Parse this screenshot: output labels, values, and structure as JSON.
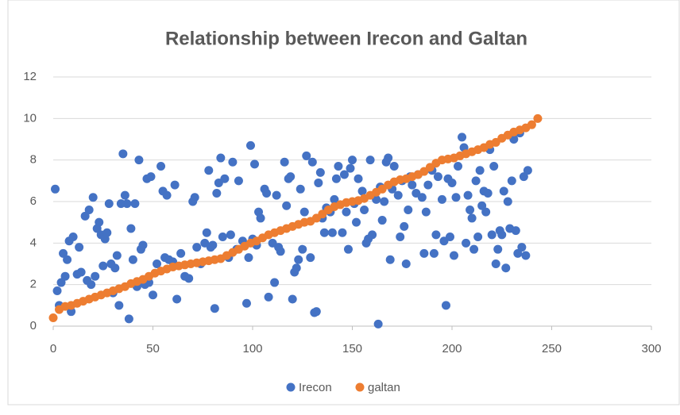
{
  "chart_data": {
    "type": "scatter",
    "title": "Relationship between Irecon and Galtan",
    "xlim": [
      0,
      300
    ],
    "xticks": [
      0,
      50,
      100,
      150,
      200,
      250,
      300
    ],
    "ylim": [
      0,
      12
    ],
    "yticks": [
      0,
      2,
      4,
      6,
      8,
      10,
      12
    ],
    "grid": true,
    "legend": "bottom",
    "series": [
      {
        "name": "Irecon",
        "color": "#4472c4",
        "x": [
          1,
          2,
          3,
          4,
          5,
          6,
          7,
          8,
          9,
          10,
          12,
          13,
          14,
          16,
          17,
          18,
          19,
          20,
          21,
          22,
          23,
          24,
          25,
          26,
          27,
          28,
          29,
          30,
          31,
          32,
          33,
          34,
          35,
          36,
          37,
          38,
          39,
          40,
          41,
          42,
          43,
          44,
          45,
          46,
          47,
          48,
          49,
          50,
          52,
          54,
          55,
          56,
          57,
          58,
          60,
          61,
          62,
          64,
          66,
          68,
          70,
          71,
          72,
          74,
          76,
          77,
          78,
          79,
          80,
          81,
          82,
          83,
          84,
          85,
          86,
          88,
          89,
          90,
          92,
          93,
          95,
          97,
          98,
          99,
          100,
          101,
          102,
          103,
          104,
          106,
          107,
          108,
          110,
          111,
          112,
          113,
          114,
          116,
          117,
          118,
          119,
          120,
          121,
          122,
          123,
          124,
          125,
          126,
          127,
          129,
          130,
          131,
          132,
          133,
          134,
          135,
          136,
          137,
          139,
          140,
          141,
          142,
          143,
          145,
          146,
          147,
          148,
          149,
          150,
          151,
          152,
          153,
          155,
          156,
          157,
          158,
          159,
          160,
          162,
          163,
          164,
          165,
          166,
          167,
          168,
          169,
          170,
          171,
          173,
          174,
          175,
          176,
          177,
          178,
          179,
          180,
          182,
          183,
          185,
          186,
          187,
          188,
          190,
          191,
          192,
          193,
          195,
          196,
          197,
          198,
          199,
          200,
          201,
          202,
          203,
          205,
          206,
          207,
          208,
          209,
          210,
          211,
          212,
          213,
          214,
          215,
          216,
          217,
          218,
          219,
          220,
          221,
          222,
          223,
          224,
          225,
          226,
          227,
          228,
          229,
          230,
          231,
          232,
          233,
          234,
          235,
          236,
          237,
          238
        ],
        "values": [
          6.6,
          1.7,
          1.0,
          2.1,
          3.5,
          2.4,
          3.2,
          4.1,
          0.7,
          4.3,
          2.5,
          3.8,
          2.6,
          5.3,
          2.2,
          5.6,
          2.0,
          6.2,
          2.4,
          4.7,
          5.0,
          4.4,
          2.9,
          4.2,
          4.5,
          5.9,
          3.0,
          1.6,
          2.8,
          3.4,
          1.0,
          5.9,
          8.3,
          6.3,
          5.9,
          0.35,
          4.7,
          3.2,
          5.9,
          1.9,
          8.0,
          3.7,
          3.9,
          2.0,
          7.1,
          2.1,
          7.2,
          1.5,
          3.0,
          7.7,
          6.5,
          3.3,
          6.3,
          3.2,
          3.1,
          6.8,
          1.3,
          3.5,
          2.4,
          2.3,
          6.0,
          6.2,
          3.8,
          3.0,
          4.0,
          4.5,
          7.5,
          3.8,
          3.9,
          0.85,
          6.4,
          6.9,
          8.1,
          4.3,
          7.1,
          3.3,
          4.4,
          7.9,
          3.7,
          7.0,
          4.1,
          1.1,
          3.3,
          8.7,
          4.2,
          7.8,
          3.9,
          5.5,
          5.2,
          6.6,
          6.4,
          1.4,
          4.0,
          2.1,
          6.3,
          3.8,
          3.6,
          7.9,
          5.8,
          7.1,
          7.2,
          1.3,
          2.6,
          2.8,
          3.2,
          6.6,
          3.7,
          5.5,
          8.2,
          3.3,
          7.9,
          0.65,
          0.7,
          6.9,
          7.4,
          5.2,
          4.5,
          5.7,
          5.5,
          4.5,
          6.1,
          7.1,
          7.7,
          4.5,
          7.3,
          5.5,
          3.7,
          7.6,
          8.0,
          5.9,
          5.0,
          7.1,
          6.5,
          5.6,
          4.0,
          4.2,
          8.0,
          4.4,
          6.1,
          0.1,
          6.7,
          5.1,
          6.0,
          7.9,
          8.1,
          3.2,
          6.6,
          7.7,
          6.3,
          4.3,
          7.0,
          4.8,
          3.0,
          5.6,
          7.2,
          6.8,
          6.4,
          7.3,
          6.2,
          3.5,
          5.5,
          6.8,
          7.5,
          3.5,
          4.4,
          7.2,
          6.1,
          4.1,
          1.0,
          7.1,
          4.3,
          6.9,
          3.4,
          6.2,
          7.7,
          9.1,
          8.6,
          4.0,
          6.3,
          5.6,
          5.2,
          3.7,
          7.0,
          4.3,
          7.5,
          5.8,
          6.5,
          5.5,
          6.4,
          8.5,
          4.4,
          7.7,
          3.0,
          3.7,
          4.6,
          4.4,
          6.5,
          2.8,
          6.0,
          4.7,
          7.0,
          9.0,
          4.6,
          3.5,
          9.3,
          3.8,
          7.2,
          3.4,
          7.5
        ]
      },
      {
        "name": "galtan",
        "color": "#ed7d31",
        "x": [
          0,
          3,
          6,
          9,
          12,
          15,
          18,
          21,
          24,
          27,
          30,
          33,
          36,
          39,
          42,
          45,
          48,
          51,
          54,
          57,
          60,
          63,
          66,
          69,
          72,
          75,
          78,
          81,
          84,
          87,
          90,
          93,
          96,
          99,
          102,
          105,
          108,
          111,
          114,
          117,
          120,
          123,
          126,
          129,
          132,
          135,
          138,
          141,
          144,
          147,
          150,
          153,
          156,
          159,
          162,
          165,
          168,
          171,
          174,
          177,
          180,
          183,
          186,
          189,
          192,
          195,
          198,
          201,
          204,
          207,
          210,
          213,
          216,
          219,
          222,
          225,
          228,
          231,
          234,
          237,
          240,
          243
        ],
        "values": [
          0.4,
          0.8,
          0.95,
          1.0,
          1.1,
          1.2,
          1.3,
          1.4,
          1.5,
          1.6,
          1.7,
          1.8,
          1.9,
          2.05,
          2.15,
          2.25,
          2.4,
          2.55,
          2.65,
          2.75,
          2.85,
          2.9,
          2.95,
          3.0,
          3.05,
          3.1,
          3.15,
          3.2,
          3.25,
          3.4,
          3.55,
          3.7,
          3.85,
          4.0,
          4.1,
          4.25,
          4.4,
          4.5,
          4.6,
          4.7,
          4.8,
          4.9,
          5.0,
          5.05,
          5.2,
          5.4,
          5.6,
          5.75,
          5.85,
          5.95,
          6.0,
          6.05,
          6.15,
          6.3,
          6.45,
          6.6,
          6.8,
          6.95,
          7.05,
          7.1,
          7.2,
          7.3,
          7.45,
          7.65,
          7.85,
          8.0,
          8.05,
          8.1,
          8.2,
          8.3,
          8.4,
          8.5,
          8.6,
          8.75,
          8.85,
          9.05,
          9.2,
          9.35,
          9.45,
          9.55,
          9.7,
          10.0
        ]
      }
    ]
  }
}
